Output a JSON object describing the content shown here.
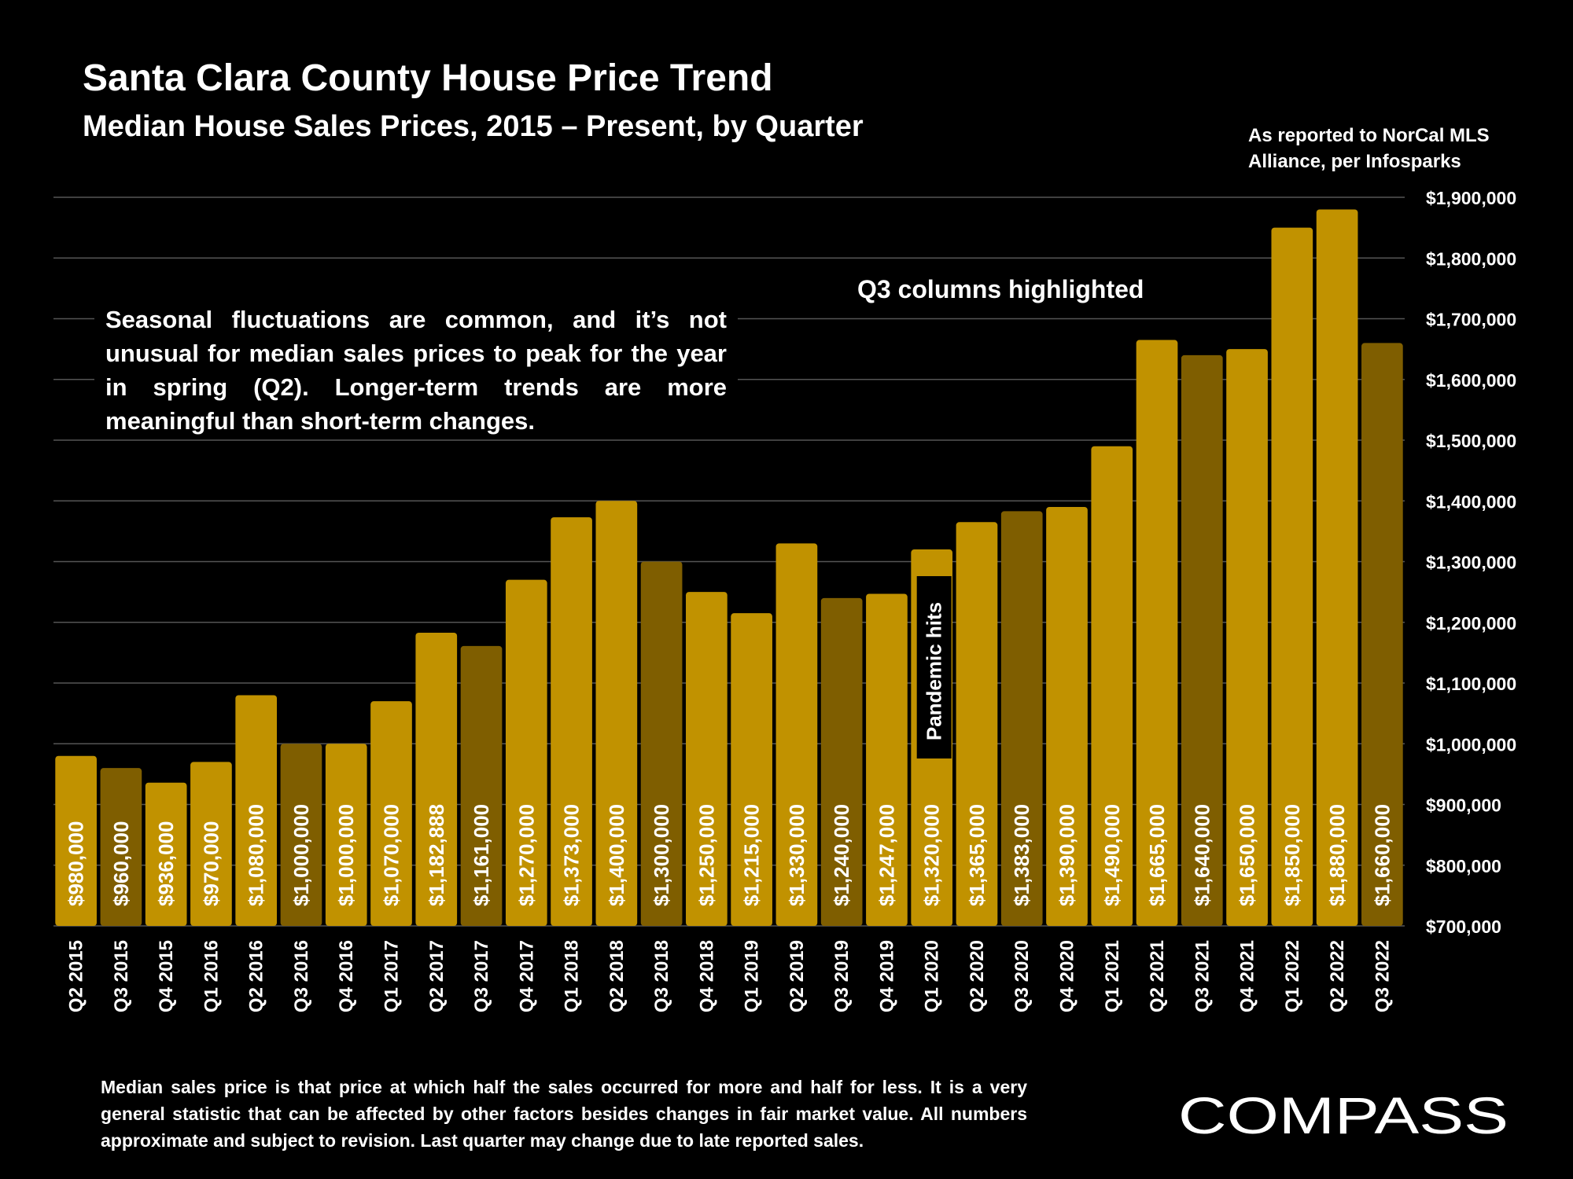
{
  "header": {
    "title": "Santa Clara County House Price Trend",
    "subtitle": "Median House Sales Prices, 2015 – Present, by Quarter",
    "source": "As reported to NorCal MLS Alliance, per Infosparks"
  },
  "annotations": {
    "highlight_note": "Q3 columns highlighted",
    "seasonal_note": "Seasonal fluctuations are common, and it’s not unusual for median sales prices to peak for the year in spring (Q2). Longer-term trends are more meaningful than short-term changes.",
    "pandemic_note": "Pandemic hits"
  },
  "footnote": "Median sales price is that price at which half the sales occurred for more and half for less. It is a very general statistic that can be affected by other factors besides changes in fair market value. All numbers approximate and subject to revision. Last quarter may change due to late reported sales.",
  "brand": {
    "logo_text": "COMPASS"
  },
  "colors": {
    "background": "#000000",
    "bar": "#C19200",
    "bar_highlight_q3": "#7F5E00",
    "text": "#FFFFFF",
    "grid": "#555555"
  },
  "chart_data": {
    "type": "bar",
    "categories": [
      "Q2 2015",
      "Q3 2015",
      "Q4 2015",
      "Q1 2016",
      "Q2 2016",
      "Q3 2016",
      "Q4 2016",
      "Q1 2017",
      "Q2 2017",
      "Q3 2017",
      "Q4 2017",
      "Q1 2018",
      "Q2 2018",
      "Q3 2018",
      "Q4 2018",
      "Q1 2019",
      "Q2 2019",
      "Q3 2019",
      "Q4 2019",
      "Q1 2020",
      "Q2 2020",
      "Q3 2020",
      "Q4 2020",
      "Q1 2021",
      "Q2 2021",
      "Q3 2021",
      "Q4 2021",
      "Q1 2022",
      "Q2 2022",
      "Q3 2022"
    ],
    "values": [
      980000,
      960000,
      936000,
      970000,
      1080000,
      1000000,
      1000000,
      1070000,
      1182888,
      1161000,
      1270000,
      1373000,
      1400000,
      1300000,
      1250000,
      1215000,
      1330000,
      1240000,
      1247000,
      1320000,
      1365000,
      1383000,
      1390000,
      1490000,
      1665000,
      1640000,
      1650000,
      1850000,
      1880000,
      1660000
    ],
    "data_labels": [
      "$980,000",
      "$960,000",
      "$936,000",
      "$970,000",
      "$1,080,000",
      "$1,000,000",
      "$1,000,000",
      "$1,070,000",
      "$1,182,888",
      "$1,161,000",
      "$1,270,000",
      "$1,373,000",
      "$1,400,000",
      "$1,300,000",
      "$1,250,000",
      "$1,215,000",
      "$1,330,000",
      "$1,240,000",
      "$1,247,000",
      "$1,320,000",
      "$1,365,000",
      "$1,383,000",
      "$1,390,000",
      "$1,490,000",
      "$1,665,000",
      "$1,640,000",
      "$1,650,000",
      "$1,850,000",
      "$1,880,000",
      "$1,660,000"
    ],
    "highlighted": [
      false,
      true,
      false,
      false,
      false,
      true,
      false,
      false,
      false,
      true,
      false,
      false,
      false,
      true,
      false,
      false,
      false,
      true,
      false,
      false,
      false,
      true,
      false,
      false,
      false,
      true,
      false,
      false,
      false,
      true
    ],
    "ylim": [
      700000,
      1900000
    ],
    "yticks": [
      700000,
      800000,
      900000,
      1000000,
      1100000,
      1200000,
      1300000,
      1400000,
      1500000,
      1600000,
      1700000,
      1800000,
      1900000
    ],
    "ytick_labels": [
      "$700,000",
      "$800,000",
      "$900,000",
      "$1,000,000",
      "$1,100,000",
      "$1,200,000",
      "$1,300,000",
      "$1,400,000",
      "$1,500,000",
      "$1,600,000",
      "$1,700,000",
      "$1,800,000",
      "$1,900,000"
    ],
    "y_axis_side": "right",
    "grid": true
  }
}
